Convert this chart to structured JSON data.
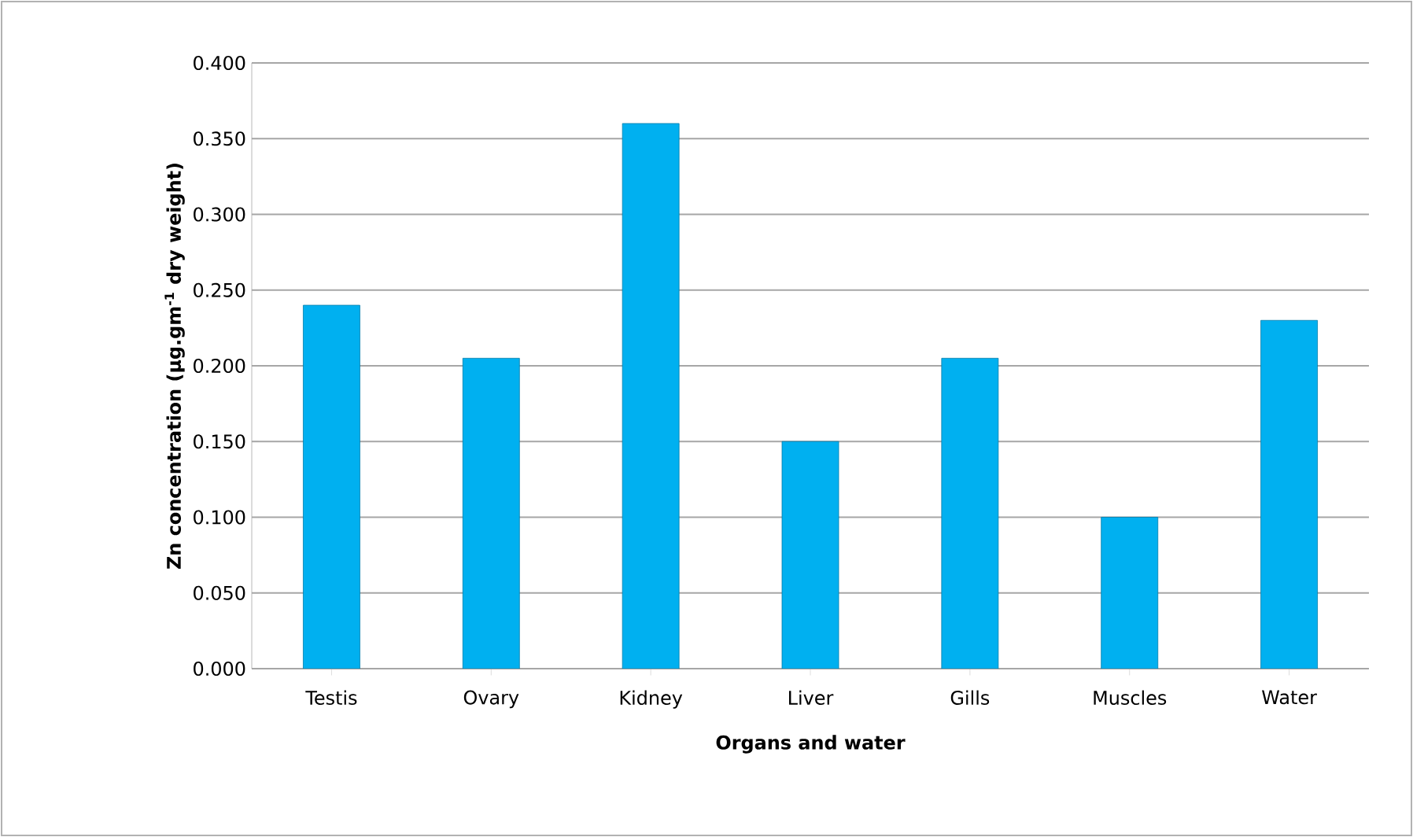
{
  "chart_data": {
    "type": "bar",
    "xlabel": "Organs and water",
    "ylabel": "Zn concentration (µg.gm$^{-1}$ dry weight)",
    "categories": [
      "Testis",
      "Ovary",
      "Kidney",
      "Liver",
      "Gills",
      "Muscles",
      "Water"
    ],
    "values": [
      0.24,
      0.205,
      0.36,
      0.15,
      0.205,
      0.1,
      0.23
    ],
    "color": "#00b0f0",
    "ylim": [
      0,
      0.4
    ],
    "yticks": [
      {
        "value": 0,
        "label": "0.000"
      },
      {
        "value": 0.05,
        "label": "0.050"
      },
      {
        "value": 0.1,
        "label": "0.100"
      },
      {
        "value": 0.15,
        "label": "0.150"
      },
      {
        "value": 0.2,
        "label": "0.200"
      },
      {
        "value": 0.25,
        "label": "0.250"
      },
      {
        "value": 0.3,
        "label": "0.300"
      },
      {
        "value": 0.35,
        "label": "0.350"
      },
      {
        "value": 0.4,
        "label": "0.400"
      }
    ],
    "grid": "y"
  }
}
